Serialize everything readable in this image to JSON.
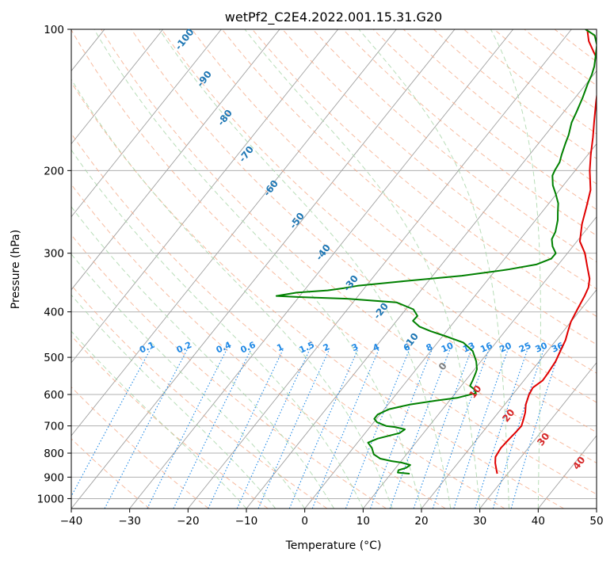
{
  "chart_data": {
    "type": "skew-t",
    "title": "wetPf2_C2E4.2022.001.15.31.G20",
    "xlabel": "Temperature (°C)",
    "ylabel": "Pressure (hPa)",
    "xlim": [
      -40,
      50
    ],
    "ylim": [
      1050,
      100
    ],
    "x_ticks": [
      -40,
      -30,
      -20,
      -10,
      0,
      10,
      20,
      30,
      40,
      50
    ],
    "y_ticks": [
      100,
      200,
      300,
      400,
      500,
      600,
      700,
      800,
      900,
      1000
    ],
    "grid": true,
    "isotherm_labels": [
      "-100",
      "-90",
      "-80",
      "-70",
      "-60",
      "-50",
      "-40",
      "-30",
      "-20",
      "-10",
      "0",
      "10",
      "20",
      "30",
      "40"
    ],
    "mixing_ratio_labels": [
      "0.1",
      "0.2",
      "0.4",
      "0.6",
      "1",
      "1.5",
      "2",
      "3",
      "4",
      "6",
      "8",
      "10",
      "13",
      "16",
      "20",
      "25",
      "30",
      "36"
    ],
    "colors": {
      "temperature": "#e00000",
      "dewpoint": "#008000",
      "isotherm_label_cold": "#1f77b4",
      "isotherm_label_warm": "#d62728",
      "mixing_ratio": "#1e88e5",
      "dry_adiabat": "#f4a582",
      "moist_adiabat": "#a6d5a6"
    },
    "series": [
      {
        "key": "temperature",
        "points": [
          [
            28.2,
            885
          ],
          [
            27.6,
            870
          ],
          [
            26.4,
            840
          ],
          [
            25.6,
            815
          ],
          [
            25.3,
            780
          ],
          [
            25.5,
            745
          ],
          [
            25.7,
            720
          ],
          [
            25.8,
            700
          ],
          [
            25.3,
            680
          ],
          [
            24.6,
            655
          ],
          [
            23.6,
            630
          ],
          [
            22.8,
            600
          ],
          [
            22.5,
            580
          ],
          [
            23.2,
            560
          ],
          [
            23.1,
            540
          ],
          [
            22.8,
            510
          ],
          [
            22.2,
            485
          ],
          [
            21.6,
            460
          ],
          [
            20.8,
            440
          ],
          [
            20.0,
            420
          ],
          [
            19.4,
            395
          ],
          [
            18.8,
            370
          ],
          [
            18.3,
            355
          ],
          [
            17.3,
            340
          ],
          [
            15.2,
            320
          ],
          [
            13.0,
            300
          ],
          [
            10.5,
            283
          ],
          [
            8.5,
            260
          ],
          [
            7.0,
            240
          ],
          [
            5.3,
            220
          ],
          [
            2.5,
            200
          ],
          [
            0.5,
            185
          ],
          [
            -1.5,
            170
          ],
          [
            -3.5,
            157
          ],
          [
            -5.8,
            143
          ],
          [
            -7.5,
            133
          ],
          [
            -9.0,
            125
          ],
          [
            -10.6,
            118
          ],
          [
            -13.0,
            112
          ],
          [
            -15.4,
            106
          ],
          [
            -17.3,
            100
          ]
        ]
      },
      {
        "key": "dewpoint",
        "points": [
          [
            13.2,
            885
          ],
          [
            11.0,
            880
          ],
          [
            10.8,
            870
          ],
          [
            11.8,
            860
          ],
          [
            12.1,
            848
          ],
          [
            10.3,
            838
          ],
          [
            8.4,
            832
          ],
          [
            6.1,
            822
          ],
          [
            4.4,
            805
          ],
          [
            3.2,
            780
          ],
          [
            1.8,
            760
          ],
          [
            2.9,
            745
          ],
          [
            5.9,
            725
          ],
          [
            6.3,
            712
          ],
          [
            4.3,
            704
          ],
          [
            2.6,
            700
          ],
          [
            0.6,
            688
          ],
          [
            -0.4,
            676
          ],
          [
            -0.4,
            662
          ],
          [
            0.8,
            645
          ],
          [
            3.8,
            630
          ],
          [
            7.8,
            618
          ],
          [
            10.9,
            610
          ],
          [
            13.5,
            596
          ],
          [
            12.7,
            585
          ],
          [
            11.5,
            575
          ],
          [
            11.2,
            560
          ],
          [
            10.7,
            540
          ],
          [
            10.4,
            530
          ],
          [
            9.2,
            510
          ],
          [
            7.2,
            485
          ],
          [
            4.4,
            465
          ],
          [
            0.3,
            450
          ],
          [
            -2.7,
            440
          ],
          [
            -5.3,
            430
          ],
          [
            -7.2,
            418
          ],
          [
            -7.1,
            408
          ],
          [
            -8.7,
            395
          ],
          [
            -12.5,
            382
          ],
          [
            -21.5,
            375
          ],
          [
            -30.0,
            372
          ],
          [
            -34.0,
            370
          ],
          [
            -31.0,
            364
          ],
          [
            -26.0,
            360
          ],
          [
            -23.5,
            356
          ],
          [
            -21.5,
            352
          ],
          [
            -15.0,
            345
          ],
          [
            -5.0,
            335
          ],
          [
            2.0,
            325
          ],
          [
            6.2,
            317
          ],
          [
            8.0,
            308
          ],
          [
            8.0,
            300
          ],
          [
            6.5,
            290
          ],
          [
            5.4,
            280
          ],
          [
            5.0,
            270
          ],
          [
            3.8,
            255
          ],
          [
            2.7,
            245
          ],
          [
            1.6,
            235
          ],
          [
            0.0,
            225
          ],
          [
            -1.8,
            215
          ],
          [
            -3.2,
            205
          ],
          [
            -3.5,
            200
          ],
          [
            -3.8,
            192
          ],
          [
            -4.5,
            185
          ],
          [
            -5.4,
            175
          ],
          [
            -6.0,
            168
          ],
          [
            -7.2,
            158
          ],
          [
            -7.8,
            150
          ],
          [
            -8.7,
            140
          ],
          [
            -9.7,
            131
          ],
          [
            -10.3,
            125
          ],
          [
            -11.0,
            120
          ],
          [
            -12.2,
            114
          ],
          [
            -13.5,
            108
          ],
          [
            -15.2,
            103
          ],
          [
            -17.6,
            100
          ]
        ]
      }
    ]
  }
}
